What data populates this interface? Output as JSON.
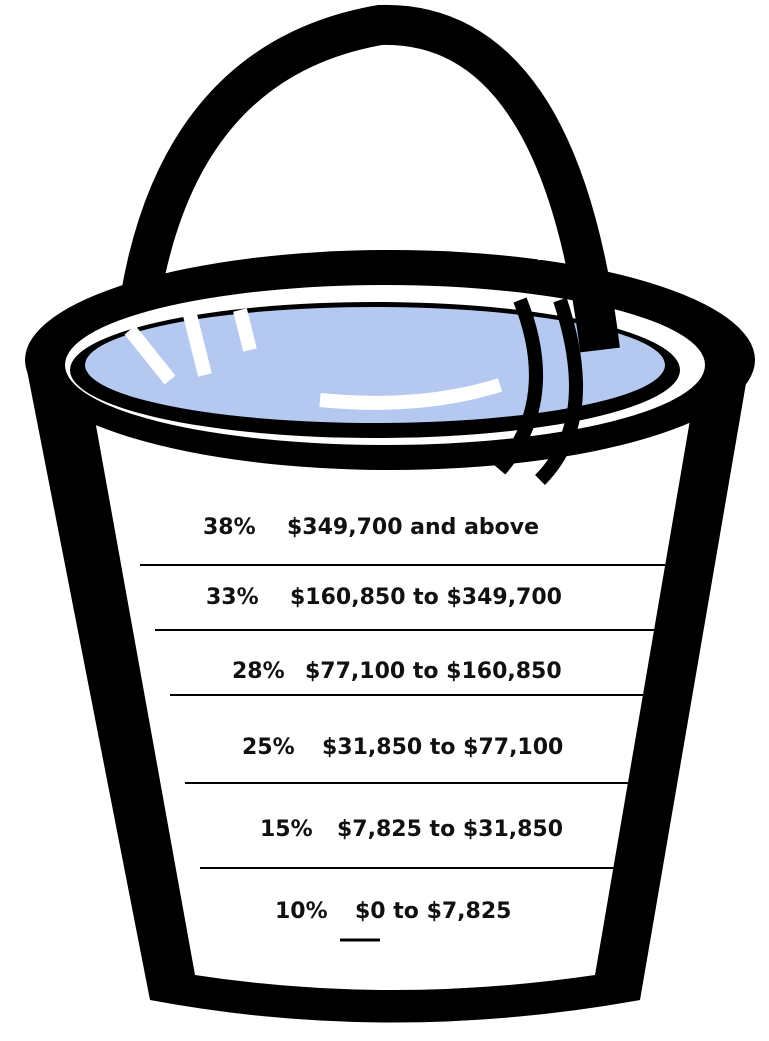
{
  "brackets": [
    {
      "rate": "38%",
      "range": "$349,700 and above"
    },
    {
      "rate": "33%",
      "range": "$160,850 to $349,700"
    },
    {
      "rate": "28%",
      "range": "$77,100 to $160,850"
    },
    {
      "rate": "25%",
      "range": "$31,850 to $77,100"
    },
    {
      "rate": "15%",
      "range": "$7,825 to $31,850"
    },
    {
      "rate": "10%",
      "range": "$0 to $7,825"
    }
  ]
}
